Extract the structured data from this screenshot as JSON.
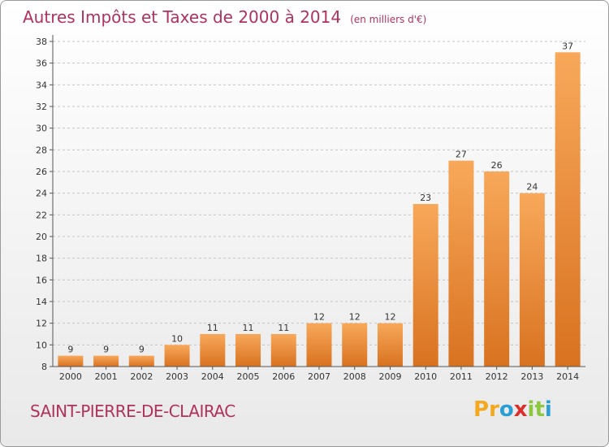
{
  "header": {
    "title": "Autres Impôts et Taxes de 2000 à 2014",
    "subtitle": "(en milliers d'€)"
  },
  "footer": {
    "commune": "SAINT-PIERRE-DE-CLAIRAC",
    "logo_letters": [
      "P",
      "r",
      "o",
      "x",
      "i",
      "t",
      "i"
    ],
    "logo_colors": [
      "#f2a91f",
      "#f2a91f",
      "#2a9fd6",
      "#d9302e",
      "#8dc63f",
      "#8dc63f",
      "#2a9fd6"
    ]
  },
  "chart_data": {
    "type": "bar",
    "categories": [
      "2000",
      "2001",
      "2002",
      "2003",
      "2004",
      "2005",
      "2006",
      "2007",
      "2008",
      "2009",
      "2010",
      "2011",
      "2012",
      "2013",
      "2014"
    ],
    "values": [
      9,
      9,
      9,
      10,
      11,
      11,
      11,
      12,
      12,
      12,
      23,
      27,
      26,
      24,
      37
    ],
    "title": "Autres Impôts et Taxes de 2000 à 2014",
    "xlabel": "",
    "ylabel": "",
    "ylim": [
      8,
      38
    ],
    "yticks": [
      8,
      10,
      12,
      14,
      16,
      18,
      20,
      22,
      24,
      26,
      28,
      30,
      32,
      34,
      36,
      38
    ],
    "grid": true,
    "bar_color_light": "#f8a85a",
    "bar_color_dark": "#d87220"
  }
}
